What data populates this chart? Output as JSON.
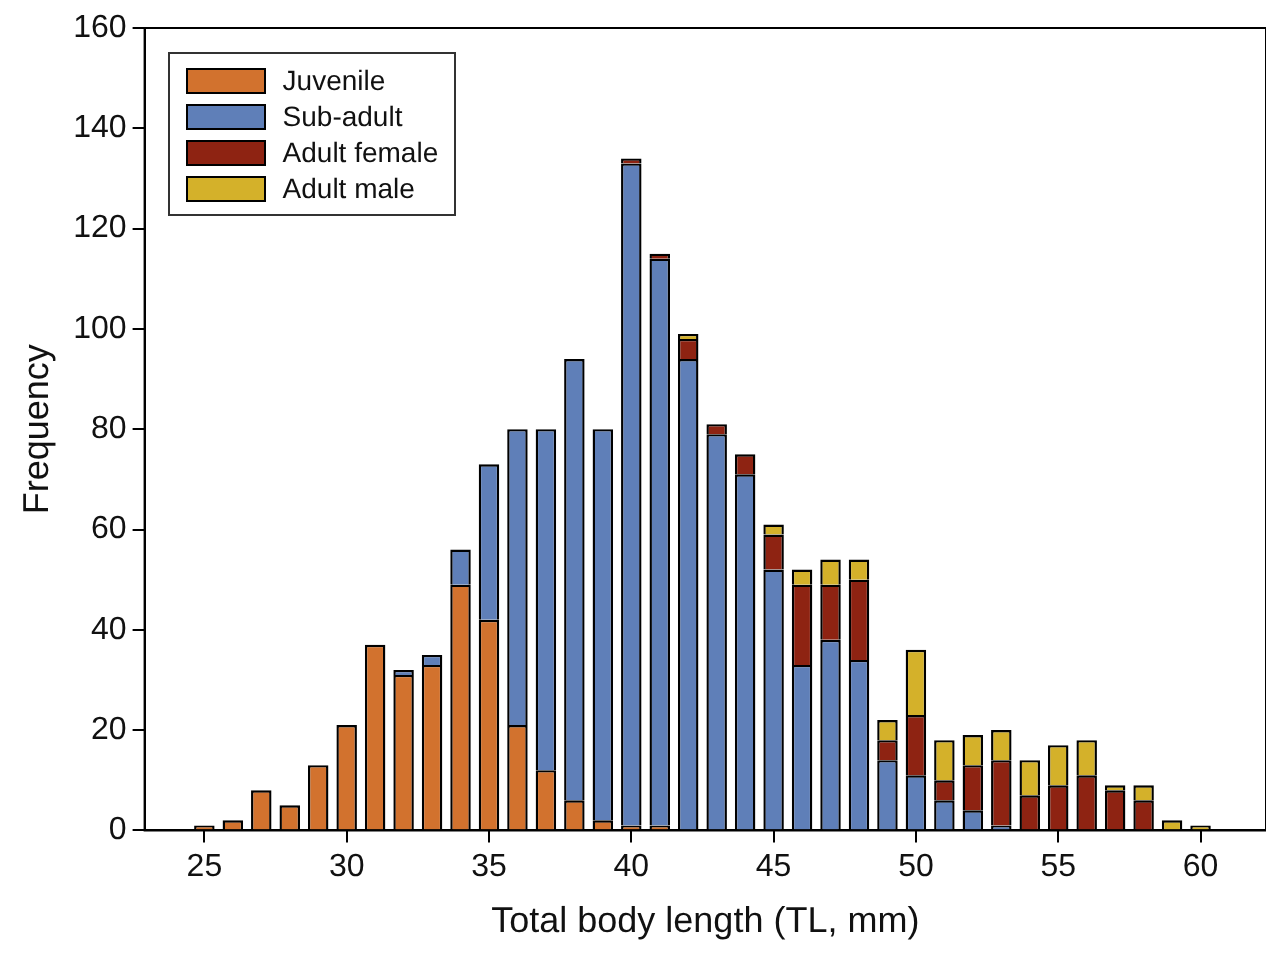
{
  "chart_data": {
    "type": "bar",
    "stacked": true,
    "xlabel": "Total body length (TL, mm)",
    "ylabel": "Frequency",
    "x": [
      25,
      26,
      27,
      28,
      29,
      30,
      31,
      32,
      33,
      34,
      35,
      36,
      37,
      38,
      39,
      40,
      41,
      42,
      43,
      44,
      45,
      46,
      47,
      48,
      49,
      50,
      51,
      52,
      53,
      54,
      55,
      56,
      57,
      58,
      59,
      60
    ],
    "series": [
      {
        "name": "Juvenile",
        "color": "#d2722e",
        "values": [
          1,
          2,
          8,
          5,
          13,
          21,
          37,
          31,
          33,
          49,
          42,
          21,
          12,
          6,
          2,
          1,
          1,
          null,
          null,
          null,
          null,
          null,
          null,
          null,
          null,
          null,
          null,
          null,
          null,
          null,
          null,
          null,
          null,
          null,
          null,
          null
        ]
      },
      {
        "name": "Sub-adult",
        "color": "#5f7fb8",
        "values": [
          null,
          null,
          null,
          null,
          null,
          null,
          null,
          1,
          2,
          7,
          31,
          59,
          68,
          88,
          78,
          132,
          113,
          94,
          79,
          71,
          52,
          33,
          38,
          34,
          14,
          11,
          6,
          4,
          1,
          null,
          null,
          null,
          null,
          null,
          null,
          null
        ]
      },
      {
        "name": "Adult female",
        "color": "#8e2312",
        "values": [
          null,
          null,
          null,
          null,
          null,
          null,
          null,
          null,
          null,
          null,
          null,
          null,
          null,
          null,
          null,
          1,
          1,
          4,
          2,
          4,
          7,
          16,
          11,
          16,
          4,
          12,
          4,
          9,
          13,
          7,
          9,
          11,
          8,
          6,
          null,
          null
        ]
      },
      {
        "name": "Adult male",
        "color": "#d4b12a",
        "values": [
          null,
          null,
          null,
          null,
          null,
          null,
          null,
          null,
          null,
          null,
          null,
          null,
          null,
          null,
          null,
          null,
          null,
          1,
          null,
          null,
          2,
          3,
          5,
          4,
          4,
          13,
          8,
          6,
          6,
          7,
          8,
          7,
          1,
          3,
          2,
          1
        ]
      }
    ],
    "xlim": [
      22.9,
      62.3
    ],
    "xticks": [
      25,
      30,
      35,
      40,
      45,
      50,
      55,
      60
    ],
    "ylim": [
      0,
      160
    ],
    "yticks": [
      0,
      20,
      40,
      60,
      80,
      100,
      120,
      140,
      160
    ],
    "grid": false,
    "legend": "top left"
  }
}
